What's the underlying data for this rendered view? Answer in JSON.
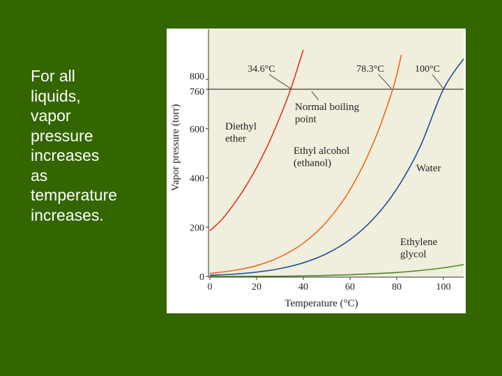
{
  "slide": {
    "text": "For all\nliquids,\nvapor\npressure\nincreases\nas\ntemperature\nincreases."
  },
  "colors": {
    "background": "#336600",
    "plot_background": "#f0eedd",
    "diethyl_ether": "#dd3322",
    "ethyl_alcohol": "#ee6622",
    "water": "#1f4f99",
    "ethylene_glycol": "#4a8a22",
    "reference_line": "#111111"
  },
  "chart_data": {
    "type": "line",
    "xlabel": "Temperature (°C)",
    "ylabel": "Vapor pressure (torr)",
    "xlim": [
      0,
      110
    ],
    "ylim": [
      0,
      900
    ],
    "x_ticks": [
      0,
      20,
      40,
      60,
      80,
      100
    ],
    "y_ticks": [
      0,
      200,
      400,
      600,
      760,
      800
    ],
    "x_tick_labels": [
      "0",
      "20",
      "40",
      "60",
      "80",
      "100"
    ],
    "y_tick_labels": [
      "0",
      "200",
      "400",
      "600",
      "760",
      "800"
    ],
    "reference_line": {
      "y": 760
    },
    "boiling_point_labels": [
      "34.6°C",
      "78.3°C",
      "100°C"
    ],
    "annotation": "Normal boiling\npoint",
    "series": [
      {
        "name": "Diethyl\nether",
        "x": [
          0,
          5,
          10,
          15,
          20,
          25,
          30,
          34.6,
          40
        ],
        "values": [
          185,
          230,
          290,
          360,
          442,
          537,
          647,
          760,
          920
        ]
      },
      {
        "name": "Ethyl alcohol\n(ethanol)",
        "x": [
          0,
          10,
          20,
          30,
          40,
          50,
          60,
          70,
          78.3,
          82
        ],
        "values": [
          12,
          24,
          44,
          79,
          135,
          222,
          352,
          542,
          760,
          900
        ]
      },
      {
        "name": "Water",
        "x": [
          0,
          10,
          20,
          30,
          40,
          50,
          60,
          70,
          80,
          90,
          100,
          110
        ],
        "values": [
          4.6,
          9.2,
          17.5,
          31.8,
          55.3,
          92.5,
          149.4,
          233.7,
          355.1,
          525.8,
          760,
          900
        ]
      },
      {
        "name": "Ethylene\nglycol",
        "x": [
          0,
          10,
          20,
          30,
          40,
          50,
          60,
          70,
          80,
          90,
          100,
          110
        ],
        "values": [
          0.1,
          0.3,
          0.5,
          1,
          2,
          4,
          7,
          11,
          16,
          24,
          35,
          50
        ]
      }
    ]
  }
}
